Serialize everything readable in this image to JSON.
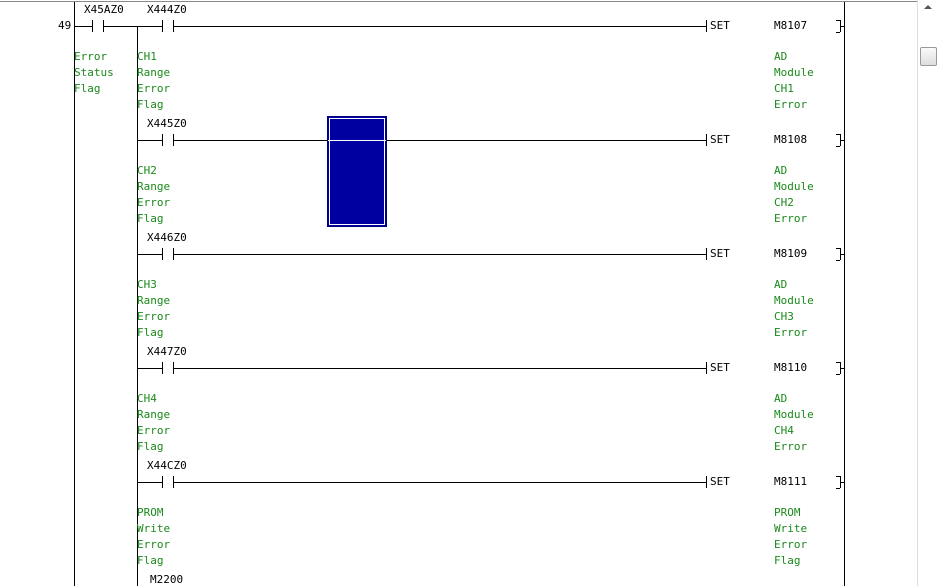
{
  "step_number": "49",
  "first_contact": {
    "device": "X45AZ0",
    "comment": [
      "Error",
      "Status",
      "Flag"
    ]
  },
  "rungs": [
    {
      "contact": "X444Z0",
      "contact_comment": [
        "CH1",
        "Range",
        "Error",
        "Flag"
      ],
      "instruction": "SET",
      "coil": "M8107",
      "coil_comment": [
        "AD",
        "Module",
        "CH1",
        "Error"
      ]
    },
    {
      "contact": "X445Z0",
      "contact_comment": [
        "CH2",
        "Range",
        "Error",
        "Flag"
      ],
      "instruction": "SET",
      "coil": "M8108",
      "coil_comment": [
        "AD",
        "Module",
        "CH2",
        "Error"
      ]
    },
    {
      "contact": "X446Z0",
      "contact_comment": [
        "CH3",
        "Range",
        "Error",
        "Flag"
      ],
      "instruction": "SET",
      "coil": "M8109",
      "coil_comment": [
        "AD",
        "Module",
        "CH3",
        "Error"
      ]
    },
    {
      "contact": "X447Z0",
      "contact_comment": [
        "CH4",
        "Range",
        "Error",
        "Flag"
      ],
      "instruction": "SET",
      "coil": "M8110",
      "coil_comment": [
        "AD",
        "Module",
        "CH4",
        "Error"
      ]
    },
    {
      "contact": "X44CZ0",
      "contact_comment": [
        "PROM",
        "Write",
        "Error",
        "Flag"
      ],
      "instruction": "SET",
      "coil": "M8111",
      "coil_comment": [
        "PROM",
        "Write",
        "Error",
        "Flag"
      ]
    }
  ],
  "next_contact": "M2200",
  "colors": {
    "comment": "#1a8a1a",
    "cursor": "#0000a0"
  }
}
